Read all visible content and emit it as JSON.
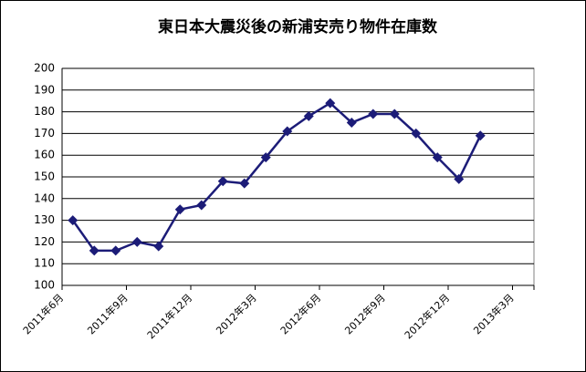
{
  "chart_data": {
    "type": "line",
    "title": "東日本大震災後の新浦安売り物件在庫数",
    "categories": [
      "2011年6月",
      null,
      null,
      "2011年9月",
      null,
      null,
      "2011年12月",
      null,
      null,
      "2012年3月",
      null,
      null,
      "2012年6月",
      null,
      null,
      "2012年9月",
      null,
      null,
      "2012年12月",
      null,
      null,
      "2013年3月"
    ],
    "series": [
      {
        "color": "#1c1c78",
        "values": [
          130,
          116,
          116,
          120,
          118,
          135,
          137,
          148,
          147,
          159,
          171,
          178,
          184,
          175,
          179,
          179,
          170,
          159,
          149,
          169,
          null,
          null
        ]
      }
    ],
    "ylim": [
      100,
      200
    ],
    "yticks": [
      100,
      110,
      120,
      130,
      140,
      150,
      160,
      170,
      180,
      190,
      200
    ],
    "grid": true
  }
}
